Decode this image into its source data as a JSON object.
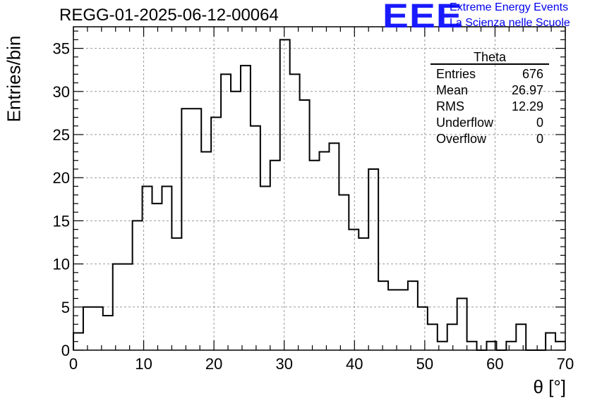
{
  "title": "REGG-01-2025-06-12-00064",
  "logo": {
    "mark": "EEE",
    "line1": "Extreme Energy Events",
    "line2": "La Scienza nelle Scuole",
    "color": "#1a1aff"
  },
  "stats": {
    "title": "Theta",
    "rows": [
      {
        "label": "Entries",
        "value": "676"
      },
      {
        "label": "Mean",
        "value": "26.97"
      },
      {
        "label": "RMS",
        "value": "12.29"
      },
      {
        "label": "Underflow",
        "value": "0"
      },
      {
        "label": "Overflow",
        "value": "0"
      }
    ]
  },
  "chart_data": {
    "type": "bar",
    "title": "REGG-01-2025-06-12-00064",
    "xlabel": "θ [°]",
    "ylabel": "Entries/bin",
    "xlim": [
      0,
      70
    ],
    "ylim": [
      0,
      37.5
    ],
    "grid": true,
    "bin_width": 1.4,
    "x_ticks": [
      0,
      10,
      20,
      30,
      40,
      50,
      60,
      70
    ],
    "y_ticks": [
      0,
      5,
      10,
      15,
      20,
      25,
      30,
      35
    ],
    "values": [
      2,
      5,
      5,
      4,
      10,
      10,
      15,
      19,
      17,
      19,
      13,
      28,
      28,
      23,
      27,
      32,
      30,
      33,
      26,
      19,
      22,
      36,
      32,
      29,
      22,
      23,
      24,
      18,
      14,
      13,
      21,
      8,
      7,
      7,
      8,
      5,
      3,
      1,
      3,
      6,
      1,
      0,
      1,
      0,
      1,
      3,
      0,
      0,
      2,
      1
    ]
  }
}
